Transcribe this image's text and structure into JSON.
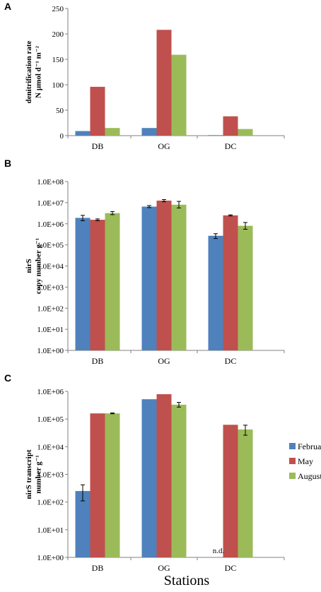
{
  "legend": [
    {
      "name": "February",
      "color": "#4F81BD"
    },
    {
      "name": "May",
      "color": "#C0504D"
    },
    {
      "name": "August",
      "color": "#9BBB59"
    }
  ],
  "x_title": "Stations",
  "chart_data": [
    {
      "panel": "A",
      "type": "bar",
      "categories": [
        "DB",
        "OG",
        "DC"
      ],
      "ylabel_lines": [
        "denitrification rate",
        "N µmol d⁻¹ m⁻²"
      ],
      "yscale": "linear",
      "ylim": [
        0,
        250
      ],
      "yticks": [
        0,
        50,
        100,
        150,
        200,
        250
      ],
      "ytick_labels": [
        "0",
        "50",
        "100",
        "150",
        "200",
        "250"
      ],
      "series": [
        {
          "name": "February",
          "values": [
            9,
            15,
            1
          ]
        },
        {
          "name": "May",
          "values": [
            96,
            208,
            38
          ]
        },
        {
          "name": "August",
          "values": [
            15,
            159,
            13
          ]
        }
      ]
    },
    {
      "panel": "B",
      "type": "bar",
      "categories": [
        "DB",
        "OG",
        "DC"
      ],
      "ylabel_lines": [
        "nirS",
        "copy number g⁻¹"
      ],
      "yscale": "log",
      "ylim": [
        1,
        100000000
      ],
      "yticks": [
        1,
        10,
        100,
        1000,
        10000,
        100000,
        1000000,
        10000000,
        100000000
      ],
      "ytick_labels": [
        "1.0E+00",
        "1.0E+01",
        "1.0E+02",
        "1.0E+03",
        "1.0E+04",
        "1.0E+05",
        "1.0E+06",
        "1.0E+07",
        "1.0E+08"
      ],
      "series": [
        {
          "name": "February",
          "values": [
            1900000,
            6500000,
            270000
          ],
          "errors": [
            [
              1400000,
              2500000
            ],
            [
              5800000,
              7300000
            ],
            [
              200000,
              340000
            ]
          ]
        },
        {
          "name": "May",
          "values": [
            1550000,
            12500000,
            2500000
          ],
          "errors": [
            [
              1400000,
              1700000
            ],
            [
              11000000,
              14000000
            ],
            [
              2350000,
              2650000
            ]
          ]
        },
        {
          "name": "August",
          "values": [
            3200000,
            8000000,
            800000
          ],
          "errors": [
            [
              2700000,
              3800000
            ],
            [
              5600000,
              11500000
            ],
            [
              550000,
              1150000
            ]
          ]
        }
      ]
    },
    {
      "panel": "C",
      "type": "bar",
      "categories": [
        "DB",
        "OG",
        "DC"
      ],
      "ylabel_lines": [
        "nirS transcript",
        "number g⁻¹"
      ],
      "yscale": "log",
      "ylim": [
        1,
        1000000
      ],
      "yticks": [
        1,
        10,
        100,
        1000,
        10000,
        100000,
        1000000
      ],
      "ytick_labels": [
        "1.0E+00",
        "1.0E+01",
        "1.0E+02",
        "1.0E+03",
        "1.0E+04",
        "1.0E+05",
        "1.0E+06"
      ],
      "series": [
        {
          "name": "February",
          "values": [
            250,
            520000,
            null
          ],
          "errors": [
            [
              110,
              420
            ],
            null,
            null
          ]
        },
        {
          "name": "May",
          "values": [
            160000,
            790000,
            62000
          ],
          "errors": null
        },
        {
          "name": "August",
          "values": [
            160000,
            330000,
            42000
          ],
          "errors": [
            [
              155000,
              166000
            ],
            [
              270000,
              400000
            ],
            [
              26000,
              60000
            ]
          ]
        }
      ],
      "annotation": {
        "text": "n.d.",
        "category": "DC"
      }
    }
  ]
}
